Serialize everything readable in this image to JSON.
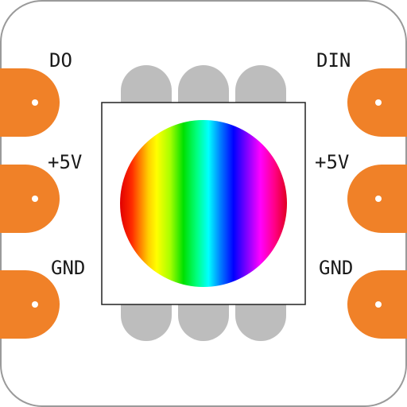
{
  "board": {
    "outline_color": "#9a9a9a",
    "fill_color": "#ffffff"
  },
  "pads": {
    "color": "#f08128",
    "hole_color": "#ffffff"
  },
  "led": {
    "body_color": "#ffffff",
    "outline_color": "#222222",
    "leg_color": "#bdbdbd",
    "lens_gradient": [
      "#ff0000",
      "#ff8800",
      "#ffff00",
      "#00dd00",
      "#00ffff",
      "#0000ff",
      "#ff00ff",
      "#ff0040"
    ]
  },
  "labels": {
    "left_top": "DO",
    "left_middle": "+5V",
    "left_bottom": "GND",
    "right_top": "DIN",
    "right_middle": "+5V",
    "right_bottom": "GND"
  }
}
